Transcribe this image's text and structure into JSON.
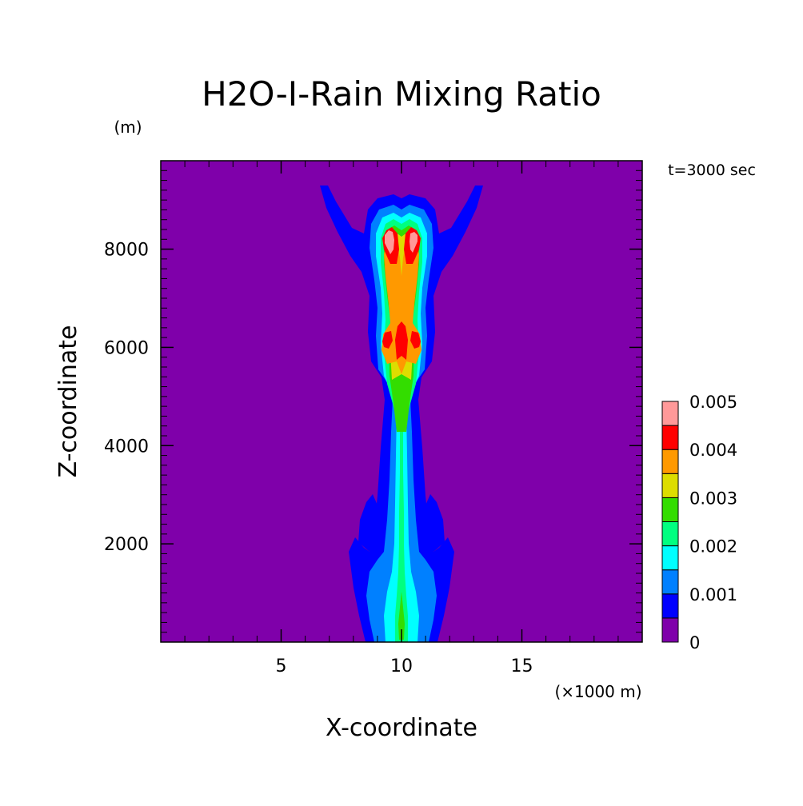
{
  "chart_data": {
    "type": "heatmap",
    "title": "H2O-I-Rain Mixing Ratio",
    "time_label": "t=3000 sec",
    "xlabel": "X-coordinate",
    "ylabel": "Z-coordinate",
    "x_unit": "(×1000 m)",
    "y_unit": "(m)",
    "xlim": [
      0,
      20
    ],
    "ylim": [
      0,
      9800
    ],
    "x_ticks": [
      {
        "value": 5,
        "label": "5"
      },
      {
        "value": 10,
        "label": "10"
      },
      {
        "value": 15,
        "label": "15"
      }
    ],
    "y_ticks": [
      {
        "value": 2000,
        "label": "2000"
      },
      {
        "value": 4000,
        "label": "4000"
      },
      {
        "value": 6000,
        "label": "6000"
      },
      {
        "value": 8000,
        "label": "8000"
      }
    ],
    "colorbar": {
      "levels": [
        0,
        0.0005,
        0.001,
        0.0015,
        0.002,
        0.0025,
        0.003,
        0.0035,
        0.004,
        0.0045,
        0.005
      ],
      "colors": [
        "#7f00aa",
        "#0000ff",
        "#0080ff",
        "#00ffff",
        "#00ff80",
        "#33dd00",
        "#dddd00",
        "#ff9900",
        "#ff0000",
        "#ff9999"
      ],
      "tick_labels": [
        {
          "value": 0,
          "label": "0"
        },
        {
          "value": 0.001,
          "label": "0.001"
        },
        {
          "value": 0.002,
          "label": "0.002"
        },
        {
          "value": 0.003,
          "label": "0.003"
        },
        {
          "value": 0.004,
          "label": "0.004"
        },
        {
          "value": 0.005,
          "label": "0.005"
        }
      ]
    },
    "background_color": "#7f00aa",
    "field_structure": {
      "level_ids": [
        "l0005",
        "l0010",
        "l0015",
        "l0020",
        "l0025",
        "l0030",
        "l0035",
        "l0040",
        "l0045"
      ],
      "column_center_x": 10,
      "core_max_height": 9100,
      "max_value_regions": [
        {
          "name": "upper-left-lobe",
          "x": 9.3,
          "z": 8400,
          "value": 0.005
        },
        {
          "name": "upper-right-lobe",
          "x": 10.7,
          "z": 8400,
          "value": 0.0048
        },
        {
          "name": "mid-core",
          "x": 10.0,
          "z": 6300,
          "value": 0.0045
        }
      ]
    }
  }
}
